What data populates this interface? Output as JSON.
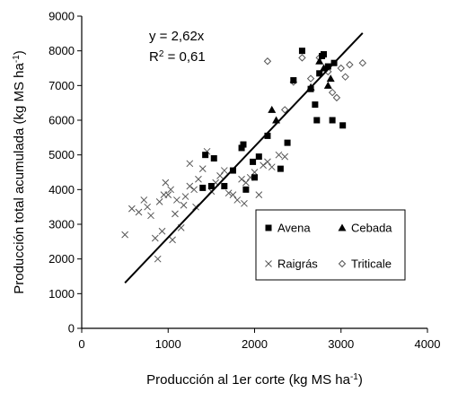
{
  "chart_data": {
    "type": "scatter",
    "x_axis": {
      "label_main": "Producción al 1er corte (kg MS ha",
      "label_sup": "-1",
      "label_end": ")",
      "range": [
        0,
        4000
      ],
      "ticks": [
        0,
        1000,
        2000,
        3000,
        4000
      ],
      "tick_labels": [
        "0",
        "1000",
        "2000",
        "3000",
        "4000"
      ]
    },
    "y_axis": {
      "label_main": "Producción total acumulada (kg MS ha",
      "label_sup": "-1",
      "label_end": ")",
      "range": [
        0,
        9000
      ],
      "ticks": [
        0,
        1000,
        2000,
        3000,
        4000,
        5000,
        6000,
        7000,
        8000,
        9000
      ],
      "tick_labels": [
        "0",
        "1000",
        "2000",
        "3000",
        "4000",
        "5000",
        "6000",
        "7000",
        "8000",
        "9000"
      ]
    },
    "grid": false,
    "annotations": {
      "equation": "y = 2,62x",
      "r2_label": "R",
      "r2_sup": "2",
      "r2_value": " = 0,61"
    },
    "regression_line": {
      "slope": 2.62,
      "x_range": [
        500,
        3250
      ]
    },
    "legend": {
      "placement": "bottom-right",
      "entries": [
        "Avena",
        "Cebada",
        "Raigrás",
        "Triticale"
      ]
    },
    "series": [
      {
        "name": "Avena",
        "marker": "square",
        "points": [
          [
            1400,
            4050
          ],
          [
            1500,
            4100
          ],
          [
            1530,
            4900
          ],
          [
            1430,
            5000
          ],
          [
            1650,
            4100
          ],
          [
            1750,
            4550
          ],
          [
            1850,
            5200
          ],
          [
            1870,
            5300
          ],
          [
            1900,
            4000
          ],
          [
            1980,
            4800
          ],
          [
            2050,
            4950
          ],
          [
            2000,
            4350
          ],
          [
            2150,
            5550
          ],
          [
            2300,
            4600
          ],
          [
            2380,
            5350
          ],
          [
            2450,
            7150
          ],
          [
            2550,
            8000
          ],
          [
            2650,
            6900
          ],
          [
            2700,
            6450
          ],
          [
            2720,
            6000
          ],
          [
            2750,
            7350
          ],
          [
            2780,
            7850
          ],
          [
            2800,
            7900
          ],
          [
            2850,
            7550
          ],
          [
            2900,
            6000
          ],
          [
            2920,
            7650
          ],
          [
            3020,
            5850
          ]
        ]
      },
      {
        "name": "Cebada",
        "marker": "triangle",
        "points": [
          [
            2200,
            6300
          ],
          [
            2250,
            6000
          ],
          [
            2650,
            6950
          ],
          [
            2850,
            7000
          ],
          [
            2880,
            7200
          ],
          [
            2750,
            7700
          ],
          [
            2800,
            7500
          ]
        ]
      },
      {
        "name": "Raigrás",
        "marker": "x",
        "points": [
          [
            500,
            2700
          ],
          [
            580,
            3450
          ],
          [
            660,
            3350
          ],
          [
            720,
            3700
          ],
          [
            760,
            3500
          ],
          [
            800,
            3250
          ],
          [
            850,
            2600
          ],
          [
            880,
            2000
          ],
          [
            900,
            3650
          ],
          [
            930,
            2800
          ],
          [
            950,
            3850
          ],
          [
            970,
            4200
          ],
          [
            1000,
            3850
          ],
          [
            1030,
            4000
          ],
          [
            1050,
            2550
          ],
          [
            1080,
            3300
          ],
          [
            1100,
            3700
          ],
          [
            1150,
            2900
          ],
          [
            1180,
            3550
          ],
          [
            1200,
            3800
          ],
          [
            1250,
            4750
          ],
          [
            1300,
            4000
          ],
          [
            1350,
            4300
          ],
          [
            1400,
            4600
          ],
          [
            1450,
            5100
          ],
          [
            1500,
            3950
          ],
          [
            1550,
            4200
          ],
          [
            1600,
            4400
          ],
          [
            1650,
            4550
          ],
          [
            1700,
            3900
          ],
          [
            1750,
            3850
          ],
          [
            1800,
            3700
          ],
          [
            1850,
            4300
          ],
          [
            1900,
            4200
          ],
          [
            1950,
            4350
          ],
          [
            2000,
            4500
          ],
          [
            2050,
            3850
          ],
          [
            2100,
            4700
          ],
          [
            2150,
            4800
          ],
          [
            2200,
            4650
          ],
          [
            2280,
            5000
          ],
          [
            2350,
            4950
          ],
          [
            1880,
            3600
          ],
          [
            1320,
            3500
          ],
          [
            1250,
            4100
          ]
        ]
      },
      {
        "name": "Triticale",
        "marker": "diamond",
        "points": [
          [
            2150,
            7700
          ],
          [
            2350,
            6300
          ],
          [
            2450,
            7100
          ],
          [
            2550,
            7800
          ],
          [
            2650,
            7200
          ],
          [
            2750,
            7800
          ],
          [
            2900,
            6800
          ],
          [
            2950,
            6650
          ],
          [
            3000,
            7500
          ],
          [
            3050,
            7250
          ],
          [
            3100,
            7600
          ],
          [
            3250,
            7650
          ],
          [
            2850,
            7400
          ]
        ]
      }
    ]
  }
}
